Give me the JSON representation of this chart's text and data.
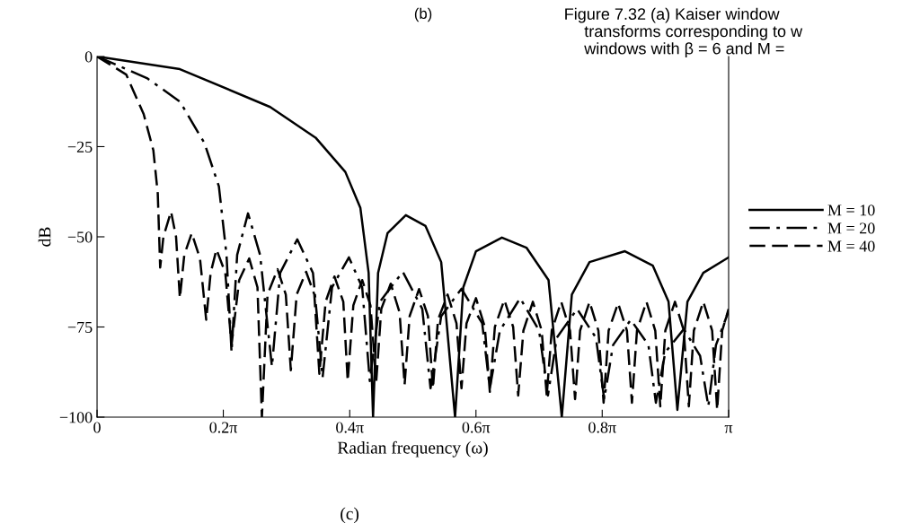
{
  "chart_data": {
    "type": "line",
    "xlabel": "Radian frequency (ω)",
    "ylabel": "dB",
    "xlim": [
      0,
      3.142
    ],
    "xticks": [
      0,
      {
        "value": 0.628,
        "label": "0.2π"
      },
      {
        "value": 1.257,
        "label": "0.4π"
      },
      {
        "value": 1.885,
        "label": "0.6π"
      },
      {
        "value": 2.513,
        "label": "0.8π"
      },
      {
        "value": 3.142,
        "label": "π"
      }
    ],
    "ylim": [
      -100,
      0
    ],
    "yticks": [
      0,
      {
        "value": -25,
        "label": "−25"
      },
      {
        "value": -50,
        "label": "−50"
      },
      {
        "value": -75,
        "label": "−75"
      },
      {
        "value": -100,
        "label": "−100"
      }
    ],
    "grid": false,
    "legend": "right",
    "marker": "none",
    "annotations": [
      "(b)",
      "(c)",
      "Figure 7.32 (a) Kaiser window",
      "transforms corresponding to w",
      "windows with β = 6 and M ="
    ],
    "series": [
      {
        "name": "M = 10",
        "color": "#000000",
        "line_style": "solid",
        "x": [
          0,
          0.412,
          0.861,
          1.087,
          1.235,
          1.31,
          1.351,
          1.373,
          1.398,
          1.445,
          1.536,
          1.634,
          1.712,
          1.781,
          1.822,
          1.885,
          2.014,
          2.136,
          2.246,
          2.312,
          2.362,
          2.45,
          2.626,
          2.765,
          2.843,
          2.887,
          2.937,
          3.016,
          3.142
        ],
        "values": [
          0,
          -3.5,
          -14,
          -22.5,
          -32,
          -42,
          -60,
          -100,
          -60,
          -49,
          -44,
          -47,
          -57,
          -100,
          -64,
          -54,
          -50.2,
          -53,
          -62,
          -100,
          -66,
          -57,
          -54,
          -58,
          -68,
          -98,
          -68,
          -60,
          -55.7
        ]
      },
      {
        "name": "M = 20",
        "color": "#000000",
        "line_style": "dashdot",
        "x": [
          0,
          0.248,
          0.412,
          0.534,
          0.606,
          0.644,
          0.669,
          0.697,
          0.751,
          0.811,
          0.87,
          0.911,
          0.996,
          1.074,
          1.122,
          1.169,
          1.253,
          1.319,
          1.357,
          1.407,
          1.521,
          1.618,
          1.659,
          1.712,
          1.813,
          1.916,
          1.954,
          2.004,
          2.105,
          2.199,
          2.243,
          2.287,
          2.388,
          2.482,
          2.523,
          2.567,
          2.655,
          2.743,
          2.78,
          2.827,
          2.919,
          3.0,
          3.041,
          3.079,
          3.142
        ],
        "values": [
          0,
          -6,
          -12.5,
          -24,
          -36,
          -55,
          -82,
          -55,
          -43.5,
          -55,
          -86,
          -60,
          -50.7,
          -60,
          -89,
          -64,
          -55.7,
          -64,
          -90,
          -68,
          -59.7,
          -70,
          -92,
          -72,
          -64.4,
          -74,
          -92,
          -76,
          -67,
          -76,
          -94,
          -78,
          -70,
          -78,
          -95,
          -80,
          -73,
          -80,
          -96,
          -82,
          -75.6,
          -83,
          -97,
          -80,
          -70.6
        ]
      },
      {
        "name": "M = 40",
        "color": "#000000",
        "line_style": "dashed",
        "x": [
          0,
          0.145,
          0.232,
          0.28,
          0.302,
          0.314,
          0.33,
          0.368,
          0.393,
          0.412,
          0.434,
          0.471,
          0.512,
          0.543,
          0.565,
          0.594,
          0.638,
          0.669,
          0.707,
          0.757,
          0.798,
          0.82,
          0.848,
          0.898,
          0.939,
          0.964,
          0.993,
          1.04,
          1.081,
          1.106,
          1.137,
          1.181,
          1.225,
          1.247,
          1.275,
          1.319,
          1.36,
          1.389,
          1.414,
          1.461,
          1.505,
          1.53,
          1.555,
          1.602,
          1.646,
          1.671,
          1.696,
          1.744,
          1.788,
          1.813,
          1.838,
          1.885,
          1.929,
          1.954,
          1.979,
          2.026,
          2.07,
          2.095,
          2.121,
          2.168,
          2.212,
          2.237,
          2.262,
          2.309,
          2.353,
          2.378,
          2.403,
          2.45,
          2.494,
          2.52,
          2.545,
          2.592,
          2.636,
          2.661,
          2.686,
          2.733,
          2.777,
          2.802,
          2.827,
          2.875,
          2.919,
          2.944,
          2.969,
          3.016,
          3.06,
          3.085,
          3.11,
          3.142
        ],
        "values": [
          0,
          -5,
          -16,
          -26,
          -38,
          -58.5,
          -50,
          -43,
          -50,
          -67,
          -55,
          -49,
          -56,
          -73,
          -60,
          -53.5,
          -60,
          -80,
          -62,
          -56,
          -64,
          -100,
          -66,
          -59,
          -66,
          -87,
          -66,
          -59.7,
          -66,
          -88,
          -68,
          -61,
          -68,
          -90,
          -69,
          -62,
          -69,
          -90,
          -70,
          -63,
          -71,
          -91,
          -72,
          -64.5,
          -72,
          -92,
          -73,
          -66,
          -74,
          -92,
          -74,
          -67,
          -75,
          -93,
          -75,
          -67.5,
          -75,
          -94,
          -76,
          -68,
          -76,
          -94,
          -76,
          -68,
          -76,
          -95,
          -76,
          -68,
          -76,
          -96,
          -76,
          -68.4,
          -76,
          -96,
          -76,
          -68,
          -76,
          -97,
          -76,
          -68,
          -76,
          -97,
          -76,
          -68,
          -76,
          -98,
          -76,
          -70
        ]
      }
    ]
  }
}
